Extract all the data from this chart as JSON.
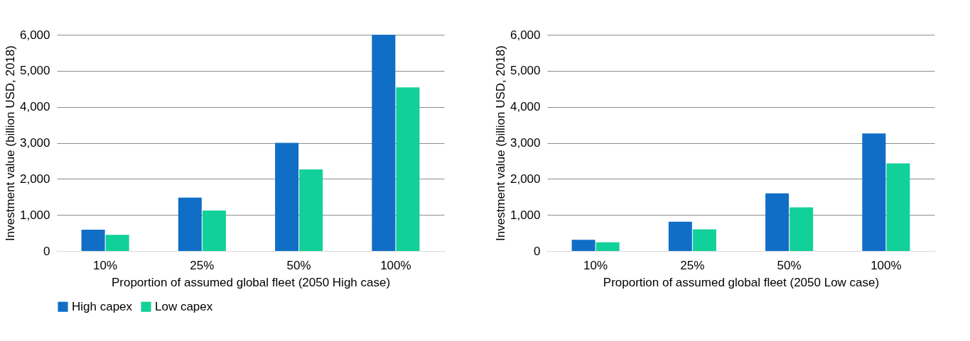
{
  "chart_data": [
    {
      "type": "bar",
      "xlabel": "Proportion of assumed global fleet (2050 High case)",
      "ylabel": "Investment value (billion USD, 2018)",
      "categories": [
        "10%",
        "25%",
        "50%",
        "100%"
      ],
      "series": [
        {
          "name": "High capex",
          "color": "#106ec6",
          "values": [
            590,
            1480,
            3000,
            6000
          ]
        },
        {
          "name": "Low capex",
          "color": "#12d09a",
          "values": [
            450,
            1120,
            2260,
            4540
          ]
        }
      ],
      "ylim": [
        0,
        6000
      ],
      "yticks": [
        {
          "value": 0,
          "label": "0"
        },
        {
          "value": 1000,
          "label": "1,000"
        },
        {
          "value": 2000,
          "label": "2,000"
        },
        {
          "value": 3000,
          "label": "3,000"
        },
        {
          "value": 4000,
          "label": "4,000"
        },
        {
          "value": 5000,
          "label": "5,000"
        },
        {
          "value": 6000,
          "label": "6,000"
        }
      ],
      "grid": "y",
      "legend": "bottom"
    },
    {
      "type": "bar",
      "xlabel": "Proportion of assumed global fleet (2050 Low case)",
      "ylabel": "Investment value (billion USD, 2018)",
      "categories": [
        "10%",
        "25%",
        "50%",
        "100%"
      ],
      "series": [
        {
          "name": "High capex",
          "color": "#106ec6",
          "values": [
            310,
            810,
            1600,
            3260
          ]
        },
        {
          "name": "Low capex",
          "color": "#12d09a",
          "values": [
            240,
            600,
            1210,
            2430
          ]
        }
      ],
      "ylim": [
        0,
        6000
      ],
      "yticks": [
        {
          "value": 0,
          "label": "0"
        },
        {
          "value": 1000,
          "label": "1,000"
        },
        {
          "value": 2000,
          "label": "2,000"
        },
        {
          "value": 3000,
          "label": "3,000"
        },
        {
          "value": 4000,
          "label": "4,000"
        },
        {
          "value": 5000,
          "label": "5,000"
        },
        {
          "value": 6000,
          "label": "6,000"
        }
      ],
      "grid": "y",
      "legend": "bottom"
    }
  ]
}
